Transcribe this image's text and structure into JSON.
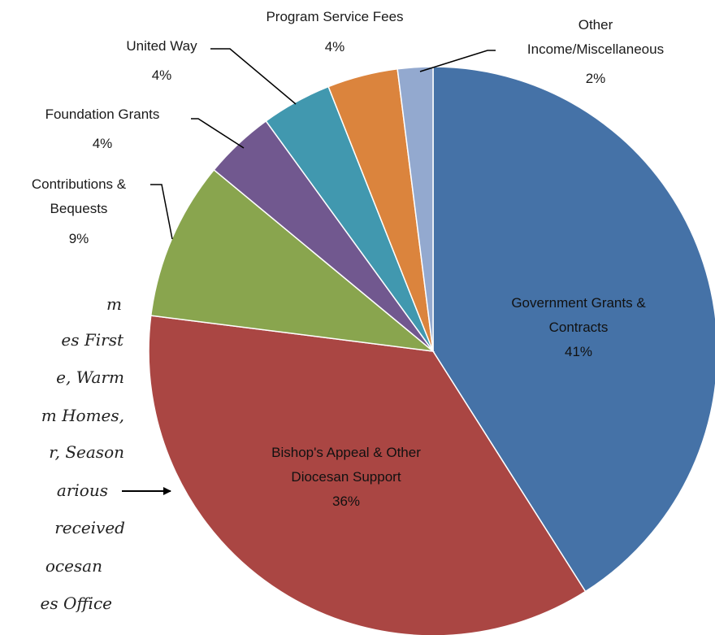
{
  "chart_data": {
    "type": "pie",
    "slices": [
      {
        "label": "Government  Grants & Contracts",
        "value": 41,
        "display": "41%",
        "color": "#4572a7"
      },
      {
        "label": "Bishop's Appeal & Other Diocesan Support",
        "value": 36,
        "display": "36%",
        "color": "#aa4643"
      },
      {
        "label": "Contributions & Bequests",
        "value": 9,
        "display": "9%",
        "color": "#89a54e"
      },
      {
        "label": "Foundation Grants",
        "value": 4,
        "display": "4%",
        "color": "#71588f"
      },
      {
        "label": "United Way",
        "value": 4,
        "display": "4%",
        "color": "#4198af"
      },
      {
        "label": "Program Service Fees",
        "value": 4,
        "display": "4%",
        "color": "#db843d"
      },
      {
        "label": "Other Income/Miscellaneous",
        "value": 2,
        "display": "2%",
        "color": "#93a9cf"
      }
    ]
  },
  "labels": {
    "gov_l1": "Government  Grants &",
    "gov_l2": "Contracts",
    "gov_pct": "41%",
    "bishop_l1": "Bishop's Appeal & Other",
    "bishop_l2": "Diocesan Support",
    "bishop_pct": "36%",
    "contrib_l1": "Contributions &",
    "contrib_l2": "Bequests",
    "contrib_pct": "9%",
    "found_l1": "Foundation Grants",
    "found_pct": "4%",
    "uw_l1": "United Way",
    "uw_pct": "4%",
    "psf_l1": "Program Service Fees",
    "psf_pct": "4%",
    "other_l1": "Other",
    "other_l2": "Income/Miscellaneous",
    "other_pct": "2%"
  },
  "annotation": {
    "lines": [
      "m",
      "es First",
      "e, Warm",
      "m Homes,",
      "r, Season",
      "arious",
      "received",
      "ocesan",
      "es Office"
    ]
  }
}
